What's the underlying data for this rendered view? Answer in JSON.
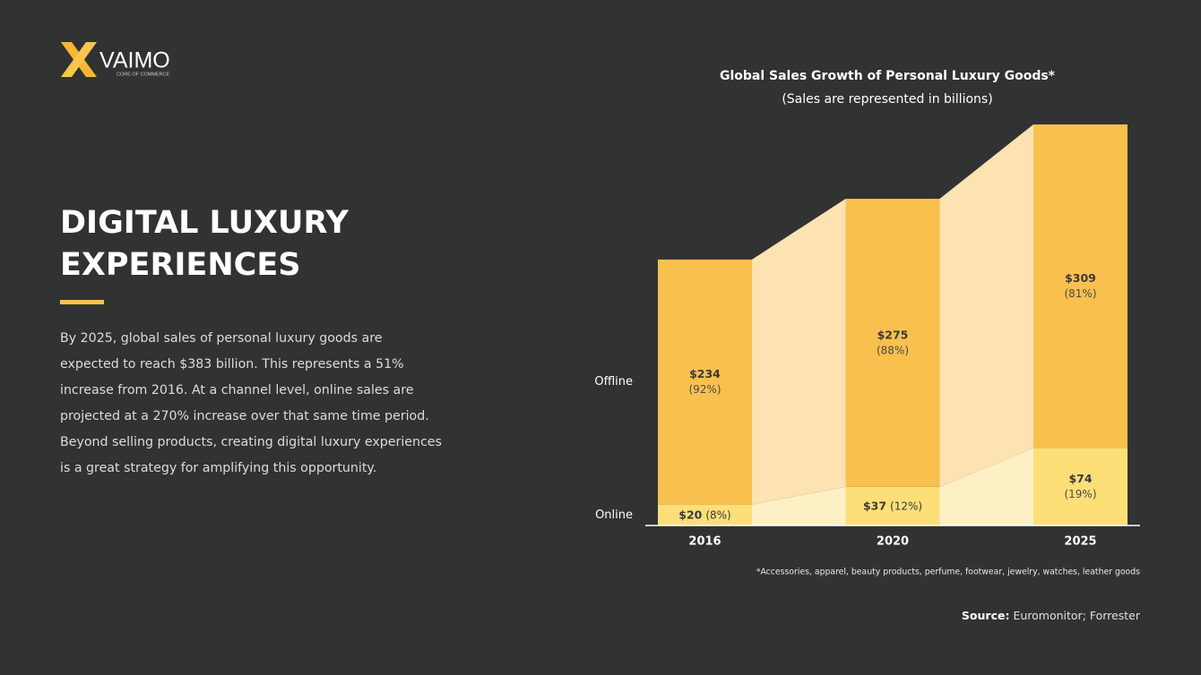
{
  "logo": {
    "name": "VAIMO",
    "tagline": "CORE OF COMMERCE"
  },
  "heading_lines": [
    "DIGITAL LUXURY",
    "EXPERIENCES"
  ],
  "body_lines": [
    "By 2025, global sales of personal luxury goods are",
    "expected to reach $383 billion. This represents a 51%",
    "increase from 2016. At a channel level, online sales are",
    "projected at a 270% increase over that same time period.",
    "Beyond selling products, creating digital luxury experiences",
    "is a great strategy for amplifying this opportunity."
  ],
  "chart_data": {
    "type": "stacked-bar",
    "title": "Global Sales Growth of Personal Luxury Goods*",
    "subtitle": "(Sales are represented in billions)",
    "categories": [
      "2016",
      "2020",
      "2025"
    ],
    "series": [
      {
        "name": "Online",
        "color": "#fddf78",
        "connector_color": "#fdf0c4",
        "values": [
          20,
          37,
          74
        ],
        "value_labels": [
          "$20",
          "$37",
          "$74"
        ],
        "share_labels": [
          "(8%)",
          "(12%)",
          "(19%)"
        ]
      },
      {
        "name": "Offline",
        "color": "#f9c04e",
        "connector_color": "#fde2b2",
        "values": [
          234,
          275,
          309
        ],
        "value_labels": [
          "$234",
          "$275",
          "$309"
        ],
        "share_labels": [
          "(92%)",
          "(88%)",
          "(81%)"
        ]
      }
    ],
    "ylim": [
      0,
      383
    ],
    "footnote": "*Accessories, apparel, beauty products, perfume, footwear, jewelry, watches, leather goods",
    "source": {
      "label": "Source:",
      "text": "Euromonitor; Forrester"
    }
  }
}
